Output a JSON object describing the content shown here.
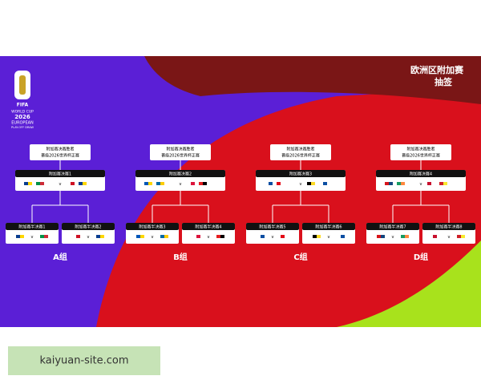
{
  "header": {
    "title_line1": "欧洲区附加赛",
    "title_line2": "抽签"
  },
  "logo": {
    "brand": "FIFA",
    "line1": "WORLD CUP",
    "year": "2026",
    "line2": "EUROPEAN",
    "line3": "PLAY-OFF DRAW"
  },
  "versus": "v",
  "groups": [
    {
      "winner_line1": "附加赛决赛胜者",
      "winner_line2": "晋级2026世界杯正赛",
      "final": "附加赛决赛1",
      "semis": [
        "附加赛半决赛1",
        "附加赛半决赛2"
      ],
      "label": "A组"
    },
    {
      "winner_line1": "附加赛决赛胜者",
      "winner_line2": "晋级2026世界杯正赛",
      "final": "附加赛决赛2",
      "semis": [
        "附加赛半决赛3",
        "附加赛半决赛4"
      ],
      "label": "B组"
    },
    {
      "winner_line1": "附加赛决赛胜者",
      "winner_line2": "晋级2026世界杯正赛",
      "final": "附加赛决赛3",
      "semis": [
        "附加赛半决赛5",
        "附加赛半决赛6"
      ],
      "label": "C组"
    },
    {
      "winner_line1": "附加赛决赛胜者",
      "winner_line2": "晋级2026世界杯正赛",
      "final": "附加赛决赛4",
      "semis": [
        "附加赛半决赛7",
        "附加赛半决赛8"
      ],
      "label": "D组"
    }
  ],
  "footer": {
    "site": "kaiyuan-site.com"
  }
}
